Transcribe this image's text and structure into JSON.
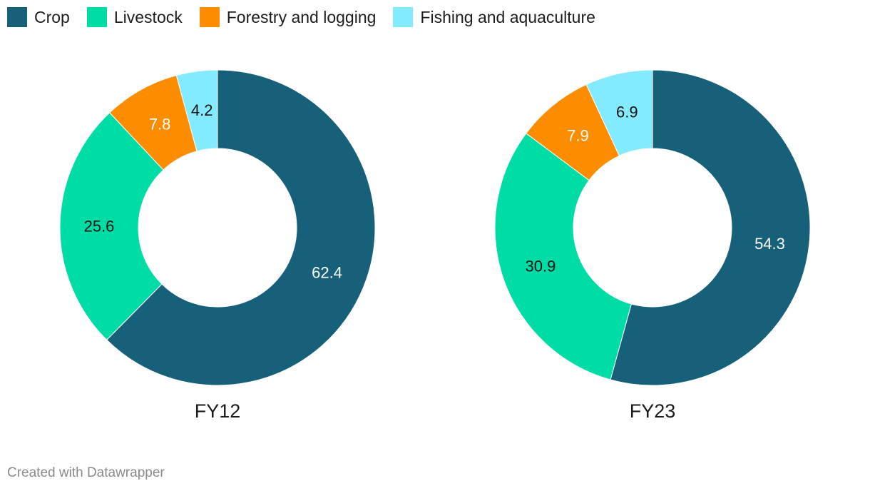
{
  "legend": [
    {
      "label": "Crop",
      "color": "#17607a"
    },
    {
      "label": "Livestock",
      "color": "#00dca5"
    },
    {
      "label": "Forestry and logging",
      "color": "#fc8d00"
    },
    {
      "label": "Fishing and aquaculture",
      "color": "#84ebff"
    }
  ],
  "chart_data": [
    {
      "type": "pie",
      "title": "FY12",
      "categories": [
        "Crop",
        "Livestock",
        "Forestry and logging",
        "Fishing and aquaculture"
      ],
      "values": [
        62.4,
        25.6,
        7.8,
        4.2
      ],
      "value_labels": [
        "62.4",
        "25.6",
        "7.8",
        "4.2"
      ],
      "colors": [
        "#17607a",
        "#00dca5",
        "#fc8d00",
        "#84ebff"
      ],
      "label_colors": [
        "#ffffff",
        "#111111",
        "#ffffff",
        "#111111"
      ]
    },
    {
      "type": "pie",
      "title": "FY23",
      "categories": [
        "Crop",
        "Livestock",
        "Forestry and logging",
        "Fishing and aquaculture"
      ],
      "values": [
        54.3,
        30.9,
        7.9,
        6.9
      ],
      "value_labels": [
        "54.3",
        "30.9",
        "7.9",
        "6.9"
      ],
      "colors": [
        "#17607a",
        "#00dca5",
        "#fc8d00",
        "#84ebff"
      ],
      "label_colors": [
        "#ffffff",
        "#111111",
        "#ffffff",
        "#111111"
      ]
    }
  ],
  "footer": {
    "credit": "Created with Datawrapper"
  }
}
